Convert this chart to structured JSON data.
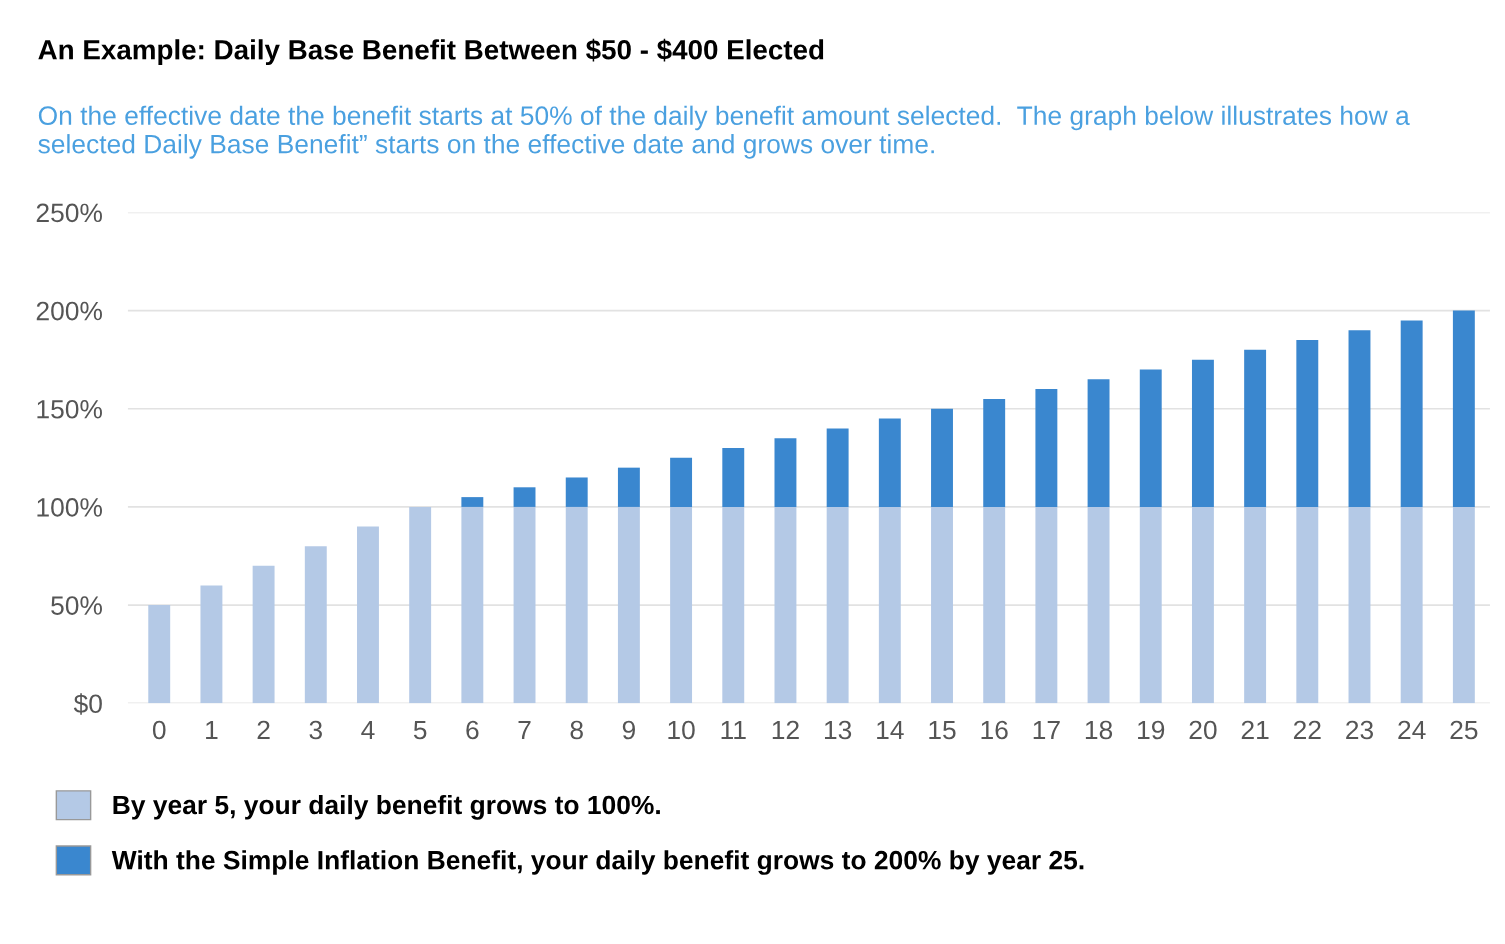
{
  "chart_data": {
    "type": "bar",
    "stacked": true,
    "title": "An Example: Daily Base Benefit Between $50 - $400 Elected",
    "subtitle": "On the effective date the benefit starts at 50% of the daily benefit amount selected.  The graph below illustrates how a selected Daily Base Benefit” starts on the effective date and grows over time.",
    "categories": [
      "0",
      "1",
      "2",
      "3",
      "4",
      "5",
      "6",
      "7",
      "8",
      "9",
      "10",
      "11",
      "12",
      "13",
      "14",
      "15",
      "16",
      "17",
      "18",
      "19",
      "20",
      "21",
      "22",
      "23",
      "24",
      "25"
    ],
    "series": [
      {
        "name": "By year 5, your daily benefit grows to 100%.",
        "color": "#b4c9e6",
        "values": [
          50,
          60,
          70,
          80,
          90,
          100,
          100,
          100,
          100,
          100,
          100,
          100,
          100,
          100,
          100,
          100,
          100,
          100,
          100,
          100,
          100,
          100,
          100,
          100,
          100,
          100
        ]
      },
      {
        "name": "With the Simple Inflation Benefit, your daily benefit grows to 200% by year 25.",
        "color": "#3a87cf",
        "values": [
          0,
          0,
          0,
          0,
          0,
          0,
          5,
          10,
          15,
          20,
          25,
          30,
          35,
          40,
          45,
          50,
          55,
          60,
          65,
          70,
          75,
          80,
          85,
          90,
          95,
          100
        ]
      }
    ],
    "ylim": [
      0,
      250
    ],
    "yticks": [
      {
        "value": 0,
        "label": "$0"
      },
      {
        "value": 50,
        "label": "50%"
      },
      {
        "value": 100,
        "label": "100%"
      },
      {
        "value": 150,
        "label": "150%"
      },
      {
        "value": 200,
        "label": "200%"
      },
      {
        "value": 250,
        "label": "250%"
      }
    ],
    "grid": "y",
    "legend": "bottom"
  }
}
